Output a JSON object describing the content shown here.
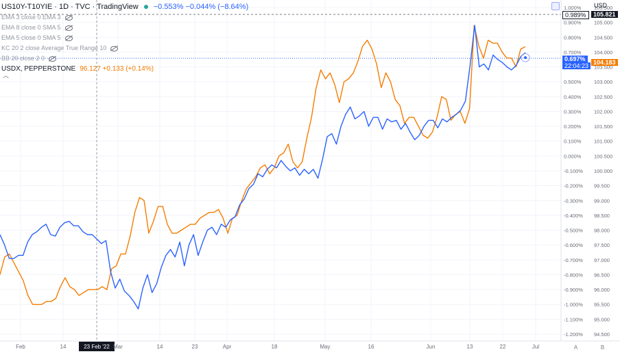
{
  "header": {
    "symbol": "US10Y-T10YIE · 1D · TVC · TradingView",
    "change": "−0.553% −0.044% (−8.64%)",
    "indicators": [
      "EMA 3 close 0 EMA 3",
      "EMA 8 close 0 SMA 5",
      "EMA 5 close 0 SMA 5",
      "KC 20 2 close Average True Range 10",
      "BB 20 close 2 0"
    ],
    "compare_symbol": "USDX, PEPPERSTONE",
    "compare_values": "96.127 +0.133 (+0.14%)",
    "currency": "USD",
    "collapse_glyph": "︿"
  },
  "tags": {
    "dashed_left": "0.989%",
    "dashed_right": "105.821",
    "blue_value": "0.697%",
    "blue_countdown": "22:04:23",
    "orange_value": "104.183"
  },
  "colors": {
    "blue": "#2962ff",
    "orange": "#f57c00",
    "axis_text": "#6a6d78",
    "grid": "#f0f3fa"
  },
  "scale_buttons": [
    "A",
    "B"
  ],
  "chart_data": {
    "type": "line",
    "x_axis_labels": [
      "Feb",
      "14",
      "23 Feb '22",
      "Mar",
      "14",
      "23",
      "Apr",
      "18",
      "May",
      "16",
      "Jun",
      "13",
      "22",
      "Jul"
    ],
    "left_axis_labels": [
      "1.000%",
      "0.900%",
      "0.800%",
      "0.700%",
      "0.600%",
      "0.500%",
      "0.400%",
      "0.300%",
      "0.200%",
      "0.100%",
      "0.000%",
      "-0.100%",
      "-0.200%",
      "-0.300%",
      "-0.400%",
      "-0.500%",
      "-0.600%",
      "-0.700%",
      "-0.800%",
      "-0.900%",
      "-1.000%",
      "-1.100%",
      "-1.200%"
    ],
    "right_axis_labels": [
      "105.500",
      "105.000",
      "104.500",
      "104.000",
      "103.500",
      "103.000",
      "102.500",
      "102.000",
      "101.500",
      "101.000",
      "100.500",
      "100.000",
      "99.500",
      "99.000",
      "98.500",
      "98.000",
      "97.500",
      "97.000",
      "96.500",
      "96.000",
      "95.500",
      "95.000",
      "94.500"
    ],
    "left_range": [
      -1.2,
      1.0
    ],
    "right_range": [
      94.5,
      105.5
    ],
    "crosshair_x": 141,
    "series": [
      {
        "name": "US10Y-T10YIE",
        "axis": "left",
        "unit": "%",
        "values": [
          -0.53,
          -0.6,
          -0.69,
          -0.69,
          -0.67,
          -0.67,
          -0.58,
          -0.53,
          -0.51,
          -0.48,
          -0.46,
          -0.53,
          -0.54,
          -0.48,
          -0.45,
          -0.44,
          -0.47,
          -0.47,
          -0.51,
          -0.53,
          -0.53,
          -0.56,
          -0.59,
          -0.57,
          -0.78,
          -0.89,
          -0.83,
          -0.91,
          -0.94,
          -0.98,
          -1.03,
          -0.89,
          -0.8,
          -0.92,
          -0.86,
          -0.75,
          -0.67,
          -0.63,
          -0.68,
          -0.58,
          -0.74,
          -0.6,
          -0.53,
          -0.67,
          -0.58,
          -0.5,
          -0.48,
          -0.53,
          -0.46,
          -0.48,
          -0.43,
          -0.41,
          -0.33,
          -0.29,
          -0.22,
          -0.19,
          -0.12,
          -0.14,
          -0.09,
          -0.06,
          -0.08,
          -0.03,
          -0.07,
          -0.1,
          -0.08,
          -0.13,
          -0.09,
          -0.12,
          -0.09,
          -0.15,
          -0.02,
          0.13,
          0.15,
          0.08,
          0.2,
          0.28,
          0.33,
          0.25,
          0.27,
          0.3,
          0.2,
          0.26,
          0.26,
          0.18,
          0.25,
          0.23,
          0.24,
          0.18,
          0.22,
          0.16,
          0.11,
          0.14,
          0.2,
          0.24,
          0.24,
          0.19,
          0.25,
          0.23,
          0.26,
          0.28,
          0.31,
          0.37,
          0.61,
          0.88,
          0.6,
          0.62,
          0.58,
          0.68,
          0.65,
          0.63,
          0.6,
          0.58,
          0.61,
          0.67,
          0.697
        ]
      },
      {
        "name": "USDX, PEPPERSTONE",
        "axis": "right",
        "unit": "",
        "values": [
          96.5,
          97.1,
          97.2,
          96.9,
          96.6,
          96.3,
          95.8,
          95.5,
          95.5,
          95.5,
          95.6,
          95.6,
          95.7,
          96.1,
          96.4,
          96.1,
          96.0,
          95.8,
          95.9,
          96.0,
          96.0,
          96.0,
          96.1,
          96.0,
          96.7,
          96.8,
          97.2,
          97.2,
          97.8,
          98.6,
          99.1,
          99.0,
          97.9,
          98.3,
          98.8,
          98.8,
          98.2,
          97.9,
          97.9,
          98.0,
          98.1,
          98.2,
          98.2,
          98.4,
          98.5,
          98.6,
          98.6,
          98.7,
          98.4,
          97.9,
          98.4,
          98.5,
          99.0,
          99.4,
          99.6,
          99.8,
          100.1,
          100.2,
          99.9,
          100.1,
          100.5,
          100.6,
          100.9,
          100.3,
          100.1,
          100.3,
          101.1,
          101.8,
          102.8,
          103.4,
          103.1,
          103.3,
          102.9,
          102.3,
          103.0,
          103.1,
          103.3,
          103.7,
          104.2,
          104.4,
          104.1,
          103.6,
          102.8,
          103.3,
          103.0,
          102.4,
          102.2,
          101.6,
          101.8,
          101.8,
          101.5,
          101.2,
          101.1,
          101.3,
          101.8,
          102.5,
          102.4,
          101.7,
          101.9,
          102.0,
          101.6,
          102.1,
          104.9,
          104.2,
          103.8,
          104.4,
          104.3,
          104.3,
          104.0,
          103.8,
          103.8,
          103.5,
          104.1,
          104.183
        ]
      }
    ]
  }
}
